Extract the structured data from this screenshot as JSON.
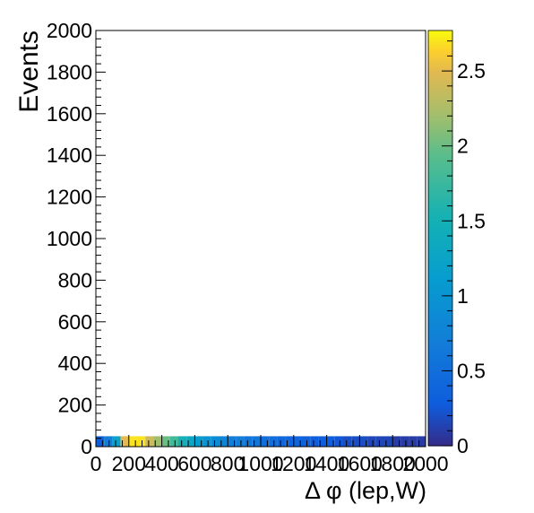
{
  "chart_data": {
    "type": "heatmap",
    "title": "",
    "xlabel": "Δ φ (lep,W)",
    "ylabel": "Events",
    "xlim": [
      0,
      2000
    ],
    "ylim": [
      0,
      2000
    ],
    "x_ticks": [
      "0",
      "200",
      "400",
      "600",
      "800",
      "1000",
      "1200",
      "1400",
      "1600",
      "1800",
      "2000"
    ],
    "y_ticks": [
      "0",
      "200",
      "400",
      "600",
      "800",
      "1000",
      "1200",
      "1400",
      "1600",
      "1800",
      "2000"
    ],
    "bin_width_x": 50,
    "bin_y_range": [
      0,
      50
    ],
    "bins_x_start": [
      0,
      50,
      100,
      150,
      200,
      250,
      300,
      350,
      400,
      450,
      500,
      550,
      600,
      650,
      700,
      750,
      800,
      850,
      900,
      950,
      1000,
      1050,
      1100,
      1150,
      1200,
      1250,
      1300,
      1350,
      1400,
      1450,
      1500,
      1550,
      1600,
      1650,
      1700,
      1750,
      1800,
      1850,
      1900,
      1950
    ],
    "values": [
      0.3,
      0.7,
      1.2,
      2.5,
      2.7,
      2.7,
      2.4,
      2.2,
      2.0,
      1.8,
      1.5,
      1.3,
      1.1,
      1.0,
      0.9,
      0.8,
      0.7,
      0.7,
      0.6,
      0.6,
      0.5,
      0.5,
      0.4,
      0.4,
      0.4,
      0.35,
      0.3,
      0.3,
      0.3,
      0.25,
      0.2,
      0.2,
      0.2,
      0.15,
      0.15,
      0.15,
      0.1,
      0.1,
      0.1,
      0.1
    ],
    "colorbar": {
      "range": [
        0,
        2.77
      ],
      "ticks": [
        "0",
        "0.5",
        "1",
        "1.5",
        "2",
        "2.5"
      ],
      "tick_values": [
        0,
        0.5,
        1,
        1.5,
        2,
        2.5
      ],
      "palette": "bird"
    }
  }
}
